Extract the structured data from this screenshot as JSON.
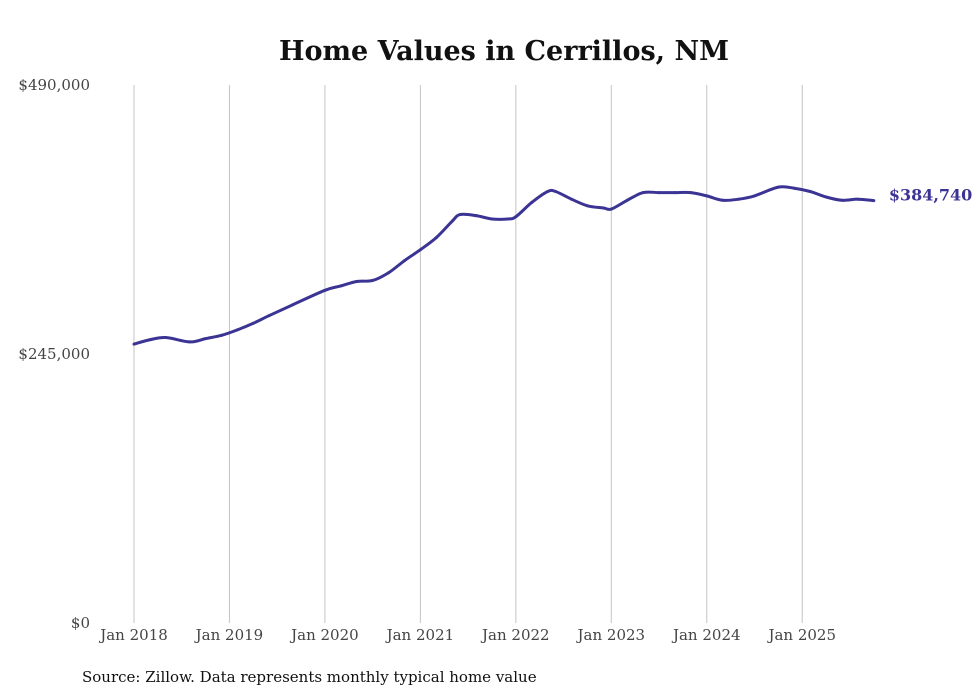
{
  "chart_data": {
    "type": "line",
    "title": "Home Values in Cerrillos, NM",
    "xlabel": "",
    "ylabel": "",
    "ylim": [
      0,
      490000
    ],
    "y_ticks": [
      0,
      245000,
      490000
    ],
    "y_tick_labels": [
      "$0",
      "$245,000",
      "$490,000"
    ],
    "x_tick_labels": [
      "Jan 2018",
      "Jan 2019",
      "Jan 2020",
      "Jan 2021",
      "Jan 2022",
      "Jan 2023",
      "Jan 2024",
      "Jan 2025"
    ],
    "grid": "vertical",
    "line_color": "#3b3494",
    "end_label": "$384,740",
    "series": [
      {
        "name": "Typical home value",
        "points": [
          [
            "2018-01",
            254000
          ],
          [
            "2018-03",
            258000
          ],
          [
            "2018-05",
            260000
          ],
          [
            "2018-08",
            256000
          ],
          [
            "2018-10",
            259000
          ],
          [
            "2018-12",
            262000
          ],
          [
            "2019-02",
            267000
          ],
          [
            "2019-04",
            273000
          ],
          [
            "2019-06",
            280000
          ],
          [
            "2019-09",
            290000
          ],
          [
            "2020-01",
            303000
          ],
          [
            "2020-03",
            307000
          ],
          [
            "2020-05",
            311000
          ],
          [
            "2020-07",
            312000
          ],
          [
            "2020-09",
            319000
          ],
          [
            "2020-11",
            330000
          ],
          [
            "2021-01",
            340000
          ],
          [
            "2021-03",
            351000
          ],
          [
            "2021-05",
            366000
          ],
          [
            "2021-06",
            372000
          ],
          [
            "2021-08",
            371000
          ],
          [
            "2021-10",
            368000
          ],
          [
            "2021-12",
            368000
          ],
          [
            "2022-01",
            370000
          ],
          [
            "2022-03",
            383000
          ],
          [
            "2022-05",
            393000
          ],
          [
            "2022-06",
            393000
          ],
          [
            "2022-08",
            386000
          ],
          [
            "2022-10",
            380000
          ],
          [
            "2022-12",
            378000
          ],
          [
            "2023-01",
            377000
          ],
          [
            "2023-03",
            385000
          ],
          [
            "2023-05",
            392000
          ],
          [
            "2023-07",
            392000
          ],
          [
            "2023-09",
            392000
          ],
          [
            "2023-11",
            392000
          ],
          [
            "2024-01",
            389000
          ],
          [
            "2024-03",
            385000
          ],
          [
            "2024-05",
            386000
          ],
          [
            "2024-07",
            389000
          ],
          [
            "2024-10",
            397000
          ],
          [
            "2024-12",
            396000
          ],
          [
            "2025-02",
            393000
          ],
          [
            "2025-04",
            388000
          ],
          [
            "2025-06",
            385000
          ],
          [
            "2025-08",
            386000
          ],
          [
            "2025-10",
            384740
          ]
        ]
      }
    ]
  },
  "source": "Source: Zillow. Data represents monthly typical home value"
}
